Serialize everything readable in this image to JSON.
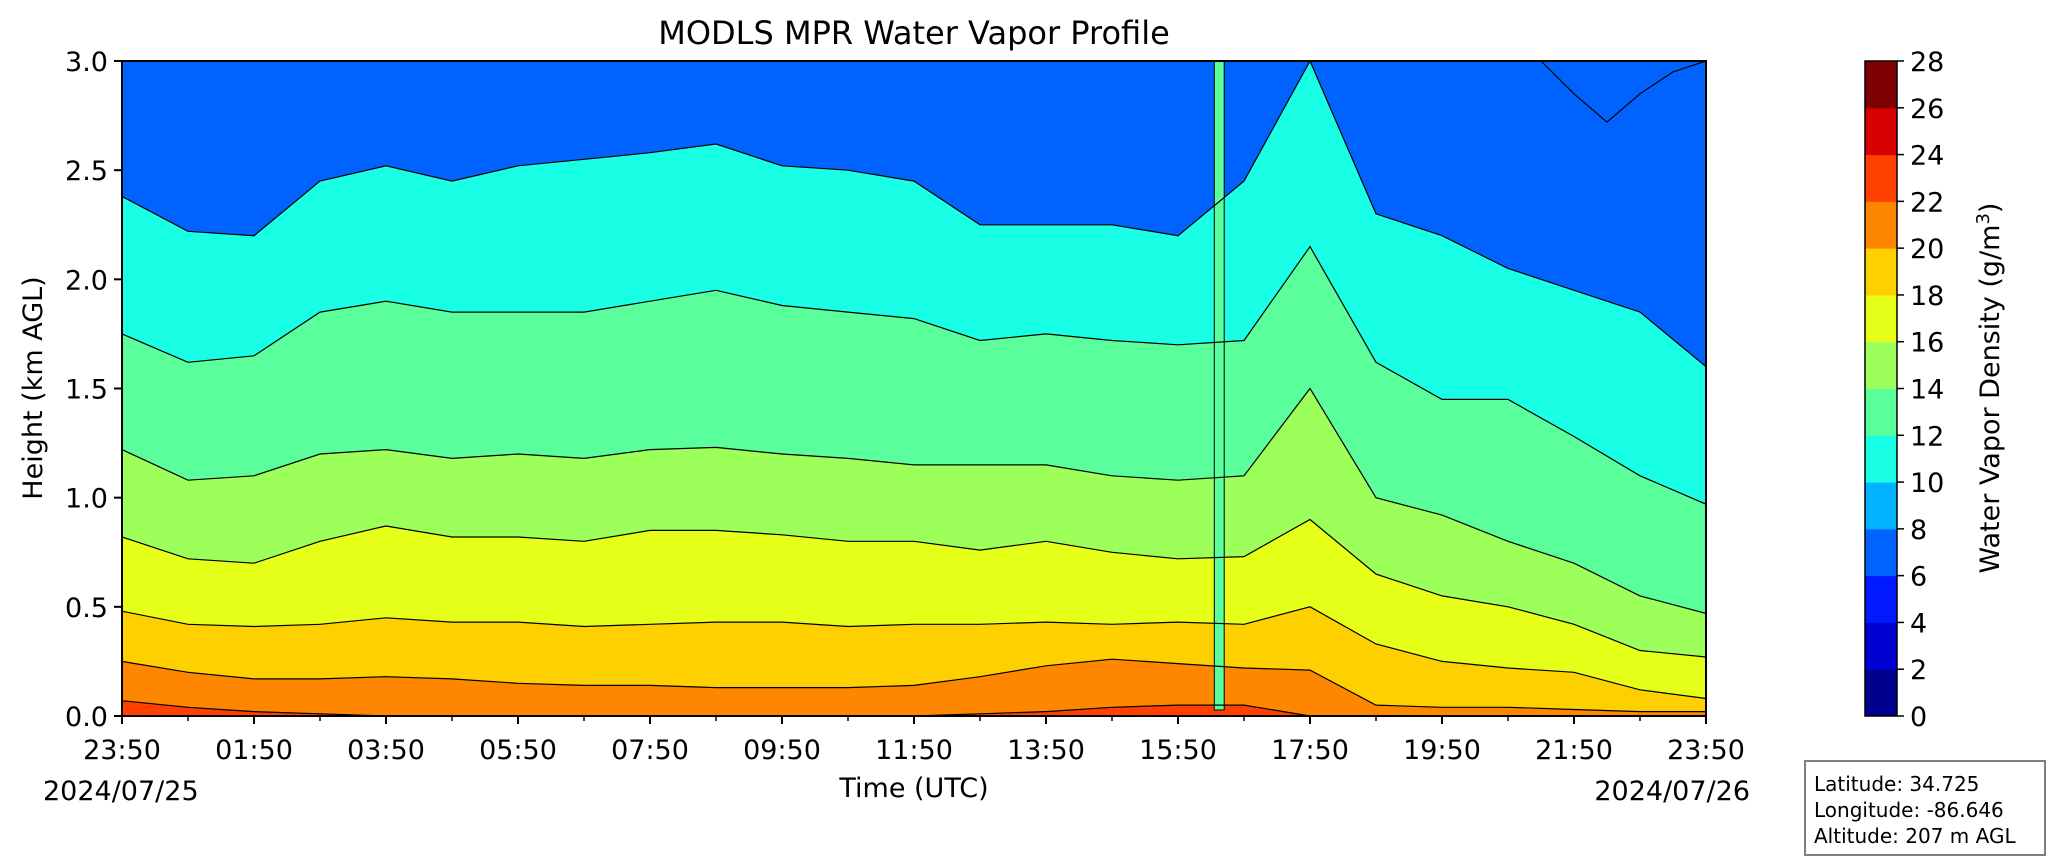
{
  "chart_data": {
    "type": "contourf",
    "title": "MODLS MPR Water Vapor Profile",
    "xlabel": "Time (UTC)",
    "ylabel": "Height (km AGL)",
    "x_start": "2024-07-25 23:50",
    "x_end": "2024-07-26 23:50",
    "xlim_hours": [
      0,
      24
    ],
    "ylim": [
      0,
      3.0
    ],
    "x_tick_labels": [
      "23:50",
      "01:50",
      "03:50",
      "05:50",
      "07:50",
      "09:50",
      "11:50",
      "13:50",
      "15:50",
      "17:50",
      "19:50",
      "21:50",
      "23:50"
    ],
    "x_tick_hours": [
      0,
      2,
      4,
      6,
      8,
      10,
      12,
      14,
      16,
      18,
      20,
      22,
      24
    ],
    "x_date_labels": {
      "start": "2024/07/25",
      "end": "2024/07/26"
    },
    "y_ticks": [
      0.0,
      0.5,
      1.0,
      1.5,
      2.0,
      2.5,
      3.0
    ],
    "y_tick_labels": [
      "0.0",
      "0.5",
      "1.0",
      "1.5",
      "2.0",
      "2.5",
      "3.0"
    ],
    "colormap": "jet",
    "colorbar": {
      "label": "Water Vapor Density (g/m",
      "label_superscript": "3",
      "label_suffix": ")",
      "levels": [
        0,
        2,
        4,
        6,
        8,
        10,
        12,
        14,
        16,
        18,
        20,
        22,
        24,
        26,
        28
      ],
      "tick_labels": [
        "0",
        "2",
        "4",
        "6",
        "8",
        "10",
        "12",
        "14",
        "16",
        "18",
        "20",
        "22",
        "24",
        "26",
        "28"
      ],
      "colors": [
        "#00008f",
        "#0000d1",
        "#0019ff",
        "#0063ff",
        "#00b2ff",
        "#19ffe5",
        "#5aff9c",
        "#9cff5a",
        "#e5ff19",
        "#ffd000",
        "#ff8700",
        "#ff4000",
        "#d80000",
        "#7f0000"
      ]
    },
    "contour_line_color": "#000000",
    "isolines": [
      {
        "level": 22,
        "hours": [
          0,
          1,
          2,
          3,
          4,
          5,
          6,
          7,
          8,
          9,
          10,
          11,
          12,
          13,
          14,
          15,
          16,
          17,
          18,
          19,
          20,
          21,
          22,
          23,
          24
        ],
        "height_km": [
          0.07,
          0.04,
          0.02,
          0.01,
          0.0,
          0.0,
          0.0,
          0.0,
          0.0,
          0.0,
          0.0,
          0.0,
          0.0,
          0.01,
          0.02,
          0.04,
          0.05,
          0.05,
          0.0,
          0.0,
          0.0,
          0.0,
          0.0,
          0.0,
          0.0
        ]
      },
      {
        "level": 20,
        "hours": [
          0,
          1,
          2,
          3,
          4,
          5,
          6,
          7,
          8,
          9,
          10,
          11,
          12,
          13,
          14,
          15,
          16,
          17,
          18,
          19,
          20,
          21,
          22,
          23,
          24
        ],
        "height_km": [
          0.25,
          0.2,
          0.17,
          0.17,
          0.18,
          0.17,
          0.15,
          0.14,
          0.14,
          0.13,
          0.13,
          0.13,
          0.14,
          0.18,
          0.23,
          0.26,
          0.24,
          0.22,
          0.21,
          0.05,
          0.04,
          0.04,
          0.03,
          0.02,
          0.02
        ]
      },
      {
        "level": 18,
        "hours": [
          0,
          1,
          2,
          3,
          4,
          5,
          6,
          7,
          8,
          9,
          10,
          11,
          12,
          13,
          14,
          15,
          16,
          17,
          18,
          19,
          20,
          21,
          22,
          23,
          24
        ],
        "height_km": [
          0.48,
          0.42,
          0.41,
          0.42,
          0.45,
          0.43,
          0.43,
          0.41,
          0.42,
          0.43,
          0.43,
          0.41,
          0.42,
          0.42,
          0.43,
          0.42,
          0.43,
          0.42,
          0.5,
          0.33,
          0.25,
          0.22,
          0.2,
          0.12,
          0.08
        ]
      },
      {
        "level": 16,
        "hours": [
          0,
          1,
          2,
          3,
          4,
          5,
          6,
          7,
          8,
          9,
          10,
          11,
          12,
          13,
          14,
          15,
          16,
          17,
          18,
          19,
          20,
          21,
          22,
          23,
          24
        ],
        "height_km": [
          0.82,
          0.72,
          0.7,
          0.8,
          0.87,
          0.82,
          0.82,
          0.8,
          0.85,
          0.85,
          0.83,
          0.8,
          0.8,
          0.76,
          0.8,
          0.75,
          0.72,
          0.73,
          0.9,
          0.65,
          0.55,
          0.5,
          0.42,
          0.3,
          0.27
        ]
      },
      {
        "level": 14,
        "hours": [
          0,
          1,
          2,
          3,
          4,
          5,
          6,
          7,
          8,
          9,
          10,
          11,
          12,
          13,
          14,
          15,
          16,
          17,
          18,
          19,
          20,
          21,
          22,
          23,
          24
        ],
        "height_km": [
          1.22,
          1.08,
          1.1,
          1.2,
          1.22,
          1.18,
          1.2,
          1.18,
          1.22,
          1.23,
          1.2,
          1.18,
          1.15,
          1.15,
          1.15,
          1.1,
          1.08,
          1.1,
          1.5,
          1.0,
          0.92,
          0.8,
          0.7,
          0.55,
          0.47
        ]
      },
      {
        "level": 12,
        "hours": [
          0,
          1,
          2,
          3,
          4,
          5,
          6,
          7,
          8,
          9,
          10,
          11,
          12,
          13,
          14,
          15,
          16,
          17,
          18,
          19,
          20,
          21,
          22,
          23,
          24
        ],
        "height_km": [
          1.75,
          1.62,
          1.65,
          1.85,
          1.9,
          1.85,
          1.85,
          1.85,
          1.9,
          1.95,
          1.88,
          1.85,
          1.82,
          1.72,
          1.75,
          1.72,
          1.7,
          1.72,
          2.15,
          1.62,
          1.45,
          1.45,
          1.28,
          1.1,
          0.97
        ]
      },
      {
        "level": 10,
        "hours": [
          0,
          1,
          2,
          3,
          4,
          5,
          6,
          7,
          8,
          9,
          10,
          11,
          12,
          13,
          14,
          15,
          16,
          17,
          18,
          19,
          20,
          21,
          22,
          23,
          24
        ],
        "height_km": [
          2.38,
          2.22,
          2.2,
          2.45,
          2.52,
          2.45,
          2.52,
          2.55,
          2.58,
          2.62,
          2.52,
          2.5,
          2.45,
          2.25,
          2.25,
          2.25,
          2.2,
          2.45,
          3.0,
          2.3,
          2.2,
          2.05,
          1.95,
          1.85,
          1.6
        ]
      },
      {
        "level": 8,
        "hours": [
          21.5,
          22,
          22.5,
          23,
          23.5,
          24
        ],
        "height_km": [
          3.0,
          2.85,
          2.72,
          2.85,
          2.95,
          3.0
        ]
      }
    ],
    "annotations": [
      {
        "event": "moist column reaching 3.0 km",
        "hours": [
          16.55,
          16.7
        ]
      }
    ],
    "station": {
      "latitude_label": "Latitude: 34.725",
      "longitude_label": "Longitude: -86.646",
      "altitude_label": "Altitude: 207 m AGL"
    }
  }
}
